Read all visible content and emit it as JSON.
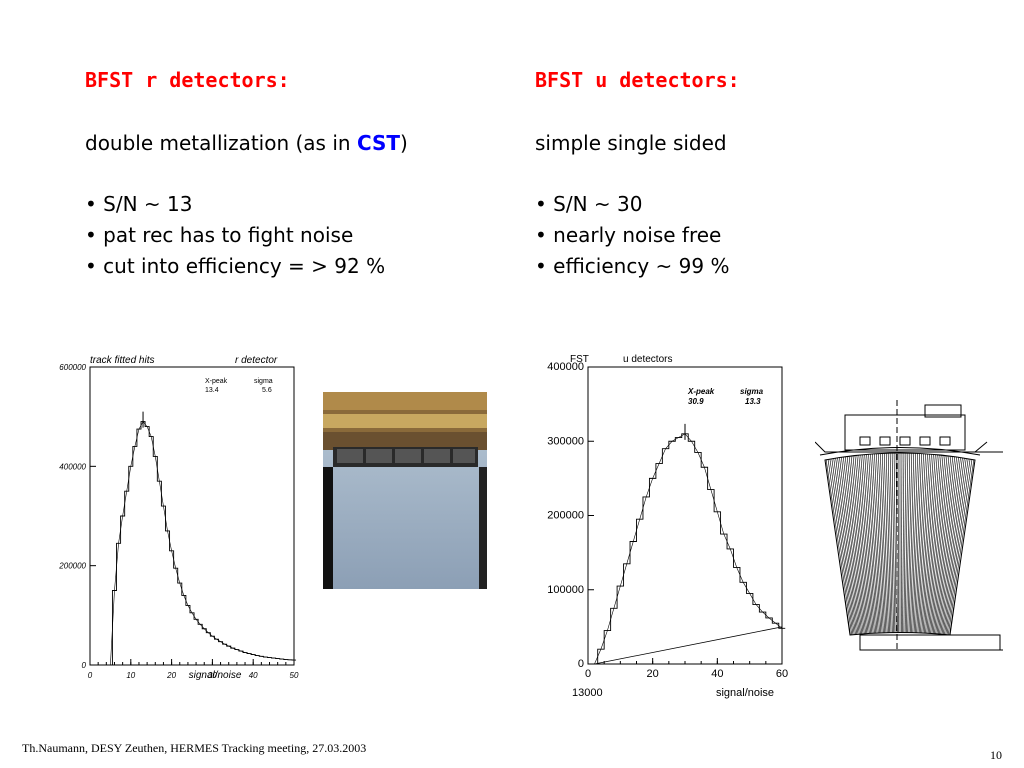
{
  "left": {
    "heading": "BFST r detectors:",
    "intro_pre": "double metallization  (as in ",
    "intro_highlight": "CST",
    "intro_post": ")",
    "bullets": [
      "S/N ~ 13",
      "pat rec has to fight noise",
      "cut into efficiency  = >  92 %"
    ]
  },
  "right": {
    "heading": "BFST u detectors:",
    "intro": "simple single sided",
    "bullets": [
      "S/N ~ 30",
      "nearly noise free",
      "efficiency ~ 99 %"
    ]
  },
  "footer": {
    "text": "Th.Naumann, DESY Zeuthen, HERMES Tracking meeting,  27.03.2003",
    "page": "10"
  },
  "colors": {
    "heading": "#ff0000",
    "highlight": "#0000ff"
  },
  "chart_data": [
    {
      "type": "line",
      "title": "track fitted hits",
      "title_right": "r detector",
      "xlabel": "signal/noise",
      "ylabel": "",
      "xlim": [
        0,
        50
      ],
      "ylim": [
        0,
        600000
      ],
      "x_ticks": [
        "0",
        "10",
        "20",
        "30",
        "40",
        "50"
      ],
      "y_ticks": [
        "0",
        "200000",
        "400000",
        "600000"
      ],
      "stats_labels": [
        "X-peak",
        "sigma"
      ],
      "stats_values": [
        "13.4",
        "5.6"
      ],
      "series": [
        {
          "x": [
            5,
            6,
            7,
            8,
            9,
            10,
            11,
            12,
            13,
            14,
            15,
            16,
            17,
            18,
            19,
            20,
            21,
            22,
            23,
            24,
            25,
            26,
            27,
            28,
            29,
            30,
            31,
            32,
            33,
            34,
            35,
            36,
            37,
            38,
            39,
            40,
            41,
            42,
            43,
            44,
            45,
            46,
            47,
            48,
            49,
            50
          ],
          "y": [
            0,
            150000,
            245000,
            300000,
            350000,
            400000,
            440000,
            475000,
            490000,
            480000,
            460000,
            420000,
            370000,
            320000,
            270000,
            230000,
            195000,
            165000,
            140000,
            120000,
            105000,
            92000,
            82000,
            73000,
            65000,
            58000,
            52000,
            47000,
            42000,
            38000,
            34000,
            31000,
            28000,
            25000,
            23000,
            21000,
            19000,
            17500,
            16000,
            15000,
            14000,
            13000,
            12000,
            11000,
            10500,
            10000
          ]
        }
      ],
      "grid": false
    },
    {
      "type": "line",
      "title": "FST",
      "title_right": "u detectors",
      "xlabel": "signal/noise",
      "ylabel": "",
      "corner_label": "13000",
      "xlim": [
        0,
        60
      ],
      "ylim": [
        0,
        400000
      ],
      "x_ticks": [
        "0",
        "20",
        "40",
        "60"
      ],
      "y_ticks": [
        "0",
        "100000",
        "200000",
        "300000",
        "400000"
      ],
      "stats_labels": [
        "X-peak",
        "sigma"
      ],
      "stats_values": [
        "30.9",
        "13.3"
      ],
      "series": [
        {
          "x": [
            2,
            4,
            6,
            8,
            10,
            12,
            14,
            16,
            18,
            20,
            22,
            24,
            26,
            28,
            30,
            32,
            34,
            36,
            38,
            40,
            42,
            44,
            46,
            48,
            50,
            52,
            54,
            56,
            58,
            60
          ],
          "y": [
            0,
            20000,
            45000,
            75000,
            105000,
            135000,
            165000,
            195000,
            225000,
            250000,
            270000,
            290000,
            300000,
            305000,
            310000,
            300000,
            285000,
            265000,
            235000,
            205000,
            175000,
            155000,
            130000,
            110000,
            95000,
            80000,
            70000,
            62000,
            55000,
            48000
          ]
        },
        {
          "x": [
            2,
            60
          ],
          "y": [
            0,
            50000
          ]
        }
      ],
      "grid": false
    }
  ]
}
